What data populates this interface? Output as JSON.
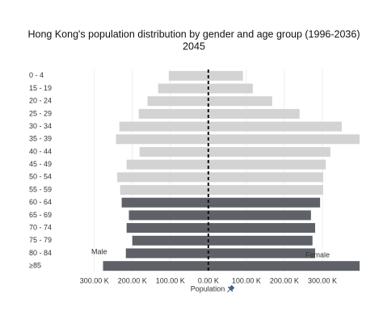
{
  "chart_data": {
    "type": "pyramid",
    "title": "Hong Kong's population distribution by gender and age group (1996-2036)",
    "subtitle": "2045",
    "x_label": "Population",
    "categories": [
      "0 - 4",
      "15 - 19",
      "20 - 24",
      "25 - 29",
      "30 - 34",
      "35 - 39",
      "40 - 44",
      "45 - 49",
      "50 - 54",
      "55 - 59",
      "60 - 64",
      "65 - 69",
      "70 - 74",
      "75 - 79",
      "80 - 84",
      "≥85"
    ],
    "series": [
      {
        "name": "Male",
        "values": [
          -104000,
          -132000,
          -160000,
          -183000,
          -234000,
          -243000,
          -181000,
          -215000,
          -240000,
          -232000,
          -228000,
          -209000,
          -215000,
          -200000,
          -217000,
          -277000
        ],
        "colors": [
          "#d3d3d3",
          "#d3d3d3",
          "#d3d3d3",
          "#d3d3d3",
          "#d3d3d3",
          "#d3d3d3",
          "#d3d3d3",
          "#d3d3d3",
          "#d3d3d3",
          "#d3d3d3",
          "#5e6167",
          "#5e6167",
          "#5e6167",
          "#5e6167",
          "#5e6167",
          "#5e6167"
        ]
      },
      {
        "name": "Female",
        "values": [
          91000,
          117000,
          168000,
          240000,
          351000,
          398000,
          321000,
          309000,
          302000,
          302000,
          294000,
          270000,
          281000,
          274000,
          281000,
          398000
        ],
        "colors": [
          "#d3d3d3",
          "#d3d3d3",
          "#d3d3d3",
          "#d3d3d3",
          "#d3d3d3",
          "#d3d3d3",
          "#d3d3d3",
          "#d3d3d3",
          "#d3d3d3",
          "#d3d3d3",
          "#5e6167",
          "#5e6167",
          "#5e6167",
          "#5e6167",
          "#5e6167",
          "#5e6167"
        ]
      }
    ],
    "xlim": [
      -310000,
      400000
    ],
    "xticks": [
      {
        "value": -300000,
        "label": "300.00 K"
      },
      {
        "value": -200000,
        "label": "200.00 K"
      },
      {
        "value": -100000,
        "label": "100.00 K"
      },
      {
        "value": 0,
        "label": "0.00 K"
      },
      {
        "value": 100000,
        "label": "100.00 K"
      },
      {
        "value": 200000,
        "label": "200.00 K"
      },
      {
        "value": 300000,
        "label": "300.00 K"
      }
    ],
    "grid": true
  }
}
